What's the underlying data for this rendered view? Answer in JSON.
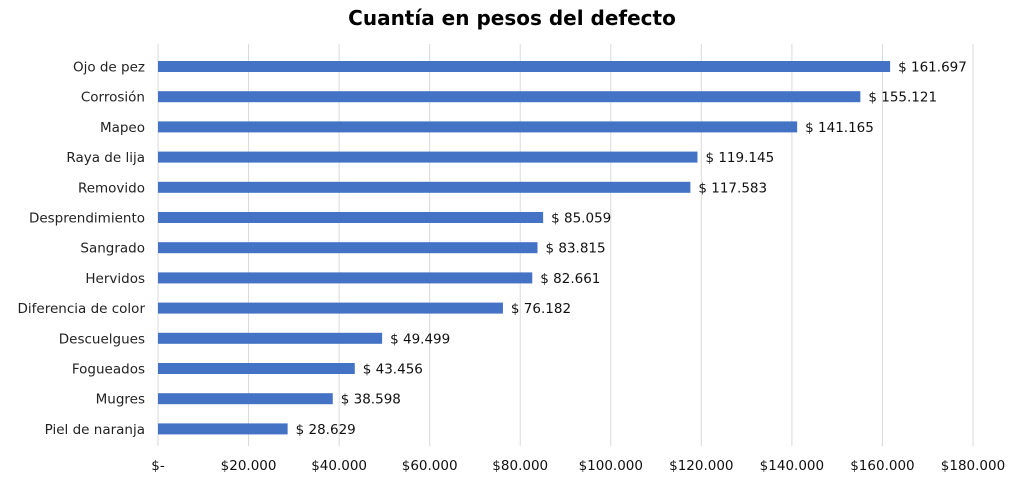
{
  "chart_data": {
    "type": "bar",
    "orientation": "horizontal",
    "title": "Cuantía en pesos del defecto",
    "xlabel": "",
    "ylabel": "",
    "categories": [
      "Ojo de pez",
      "Corrosión",
      "Mapeo",
      "Raya de lija",
      "Removido",
      "Desprendimiento",
      "Sangrado",
      "Hervidos",
      "Diferencia de color",
      "Descuelgues",
      "Fogueados",
      "Mugres",
      "Piel de naranja"
    ],
    "values": [
      161697,
      155121,
      141165,
      119145,
      117583,
      85059,
      83815,
      82661,
      76182,
      49499,
      43456,
      38598,
      28629
    ],
    "value_labels": [
      "$ 161.697",
      "$ 155.121",
      "$ 141.165",
      "$ 119.145",
      "$ 117.583",
      "$ 85.059",
      "$ 83.815",
      "$ 82.661",
      "$ 76.182",
      "$ 49.499",
      "$ 43.456",
      "$ 38.598",
      "$ 28.629"
    ],
    "xlim": [
      0,
      180000
    ],
    "xticks": [
      0,
      20000,
      40000,
      60000,
      80000,
      100000,
      120000,
      140000,
      160000,
      180000
    ],
    "xtick_labels": [
      "$-",
      "$20.000",
      "$40.000",
      "$60.000",
      "$80.000",
      "$100.000",
      "$120.000",
      "$140.000",
      "$160.000",
      "$180.000"
    ],
    "grid": true,
    "legend": "none",
    "colors": {
      "bar": "#4472C4",
      "grid": "#D9D9D9"
    }
  }
}
